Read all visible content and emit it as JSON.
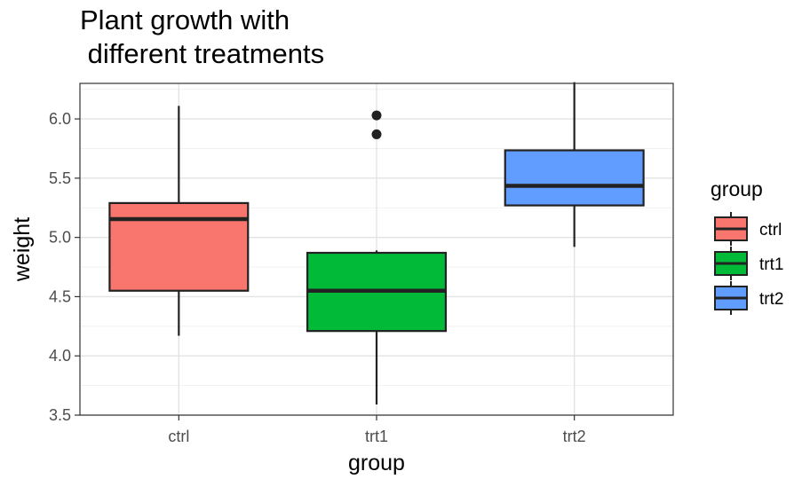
{
  "chart_data": {
    "type": "boxplot",
    "title_lines": [
      "Plant growth with",
      " different treatments"
    ],
    "xlabel": "group",
    "ylabel": "weight",
    "categories": [
      "ctrl",
      "trt1",
      "trt2"
    ],
    "ylim": [
      3.5,
      6.3
    ],
    "yticks": [
      3.5,
      4.0,
      4.5,
      5.0,
      5.5,
      6.0
    ],
    "ytick_labels": [
      "3.5",
      "4.0",
      "4.5",
      "5.0",
      "5.5",
      "6.0"
    ],
    "grid": true,
    "legend": {
      "title": "group",
      "placement": "right",
      "entries": [
        "ctrl",
        "trt1",
        "trt2"
      ]
    },
    "colors": {
      "ctrl": "#F8766D",
      "trt1": "#00BA38",
      "trt2": "#619CFF"
    },
    "boxes": [
      {
        "group": "ctrl",
        "whisker_low": 4.17,
        "q1": 4.55,
        "median": 5.155,
        "q3": 5.29,
        "whisker_high": 6.11,
        "outliers": []
      },
      {
        "group": "trt1",
        "whisker_low": 3.59,
        "q1": 4.21,
        "median": 4.55,
        "q3": 4.87,
        "whisker_high": 4.89,
        "outliers": [
          5.87,
          6.03
        ]
      },
      {
        "group": "trt2",
        "whisker_low": 4.92,
        "q1": 5.27,
        "median": 5.435,
        "q3": 5.735,
        "whisker_high": 6.31,
        "outliers": []
      }
    ]
  }
}
